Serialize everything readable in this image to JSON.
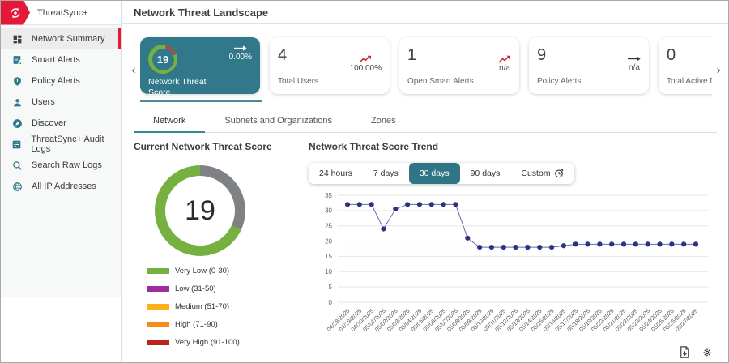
{
  "colors": {
    "teal": "#31798a",
    "brand_red": "#e51937",
    "trend_red": "#cf1f2e",
    "gauge_green": "#76b041",
    "gauge_gray": "#7f8285",
    "mini_segment": "#96554c",
    "line_dot": "#2d3282",
    "line_stroke": "#666bb0"
  },
  "brand": {
    "name": "ThreatSync+"
  },
  "sidebar": {
    "items": [
      {
        "label": "Network Summary",
        "icon": "dashboard-icon",
        "active": true
      },
      {
        "label": "Smart Alerts",
        "icon": "smart-alerts-icon"
      },
      {
        "label": "Policy Alerts",
        "icon": "policy-alerts-shield-icon"
      },
      {
        "label": "Users",
        "icon": "users-icon"
      },
      {
        "label": "Discover",
        "icon": "discover-compass-icon"
      },
      {
        "label": "ThreatSync+ Audit Logs",
        "icon": "audit-logs-icon"
      },
      {
        "label": "Search Raw Logs",
        "icon": "search-icon"
      },
      {
        "label": "All IP Addresses",
        "icon": "globe-icon"
      }
    ]
  },
  "header": {
    "title": "Network Threat Landscape"
  },
  "cards": [
    {
      "value": "19",
      "label": "Network Threat Score",
      "trend": "flat",
      "trend_value": "0.00%",
      "selected": true,
      "mini_segment_deg": 58
    },
    {
      "value": "4",
      "label": "Total Users",
      "trend": "up",
      "trend_value": "100.00%"
    },
    {
      "value": "1",
      "label": "Open Smart Alerts",
      "trend": "up",
      "trend_value": "n/a"
    },
    {
      "value": "9",
      "label": "Policy Alerts",
      "trend": "flat",
      "trend_value": "n/a"
    },
    {
      "value": "0",
      "label": "Total Active Devices"
    }
  ],
  "tabs": [
    {
      "label": "Network",
      "active": true
    },
    {
      "label": "Subnets and Organizations"
    },
    {
      "label": "Zones"
    }
  ],
  "gauge": {
    "title": "Current Network Threat Score",
    "value": "19",
    "gray_sweep_deg": 115,
    "legend": [
      {
        "label": "Very Low (0-30)",
        "color": "#76b041"
      },
      {
        "label": "Low (31-50)",
        "color": "#a02c9b"
      },
      {
        "label": "Medium (51-70)",
        "color": "#fbb117"
      },
      {
        "label": "High (71-90)",
        "color": "#f68c1e"
      },
      {
        "label": "Very High (91-100)",
        "color": "#bb2418"
      }
    ]
  },
  "trend": {
    "title": "Network Threat Score Trend",
    "ranges": [
      "24 hours",
      "7 days",
      "30 days",
      "90 days",
      "Custom"
    ],
    "active_range": "30 days"
  },
  "chart_data": {
    "type": "line",
    "title": "Network Threat Score Trend",
    "x": [
      "04/28/2025",
      "04/29/2025",
      "04/30/2025",
      "05/01/2025",
      "05/02/2025",
      "05/03/2025",
      "05/04/2025",
      "05/05/2025",
      "05/06/2025",
      "05/07/2025",
      "05/08/2025",
      "05/09/2025",
      "05/10/2025",
      "05/11/2025",
      "05/12/2025",
      "05/13/2025",
      "05/14/2025",
      "05/15/2025",
      "05/16/2025",
      "05/17/2025",
      "05/18/2025",
      "05/19/2025",
      "05/20/2025",
      "05/21/2025",
      "05/22/2025",
      "05/23/2025",
      "05/24/2025",
      "05/25/2025",
      "05/26/2025",
      "05/27/2025"
    ],
    "values": [
      32,
      32,
      32,
      24,
      30.5,
      32,
      32,
      32,
      32,
      32,
      21,
      18,
      18,
      18,
      18,
      18,
      18,
      18,
      18.5,
      19,
      19,
      19,
      19,
      19,
      19,
      19,
      19,
      19,
      19,
      19
    ],
    "xlabel": "",
    "ylabel": "",
    "ylim": [
      0,
      35
    ],
    "ytick_step": 5,
    "grid": true,
    "legend_position": "none"
  }
}
